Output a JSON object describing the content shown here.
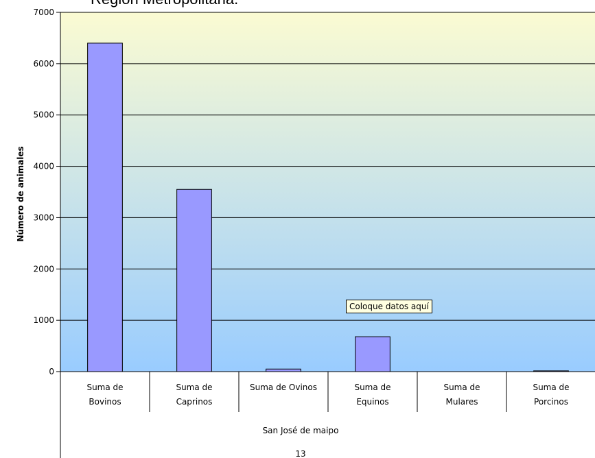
{
  "chart_data": {
    "type": "bar",
    "title": "Región Metropolitana.",
    "ylabel": "Número de animales",
    "ylim": [
      0,
      7000
    ],
    "yticks": [
      0,
      1000,
      2000,
      3000,
      4000,
      5000,
      6000,
      7000
    ],
    "categories": [
      [
        "Suma de",
        "Bovinos"
      ],
      [
        "Suma de",
        "Caprinos"
      ],
      [
        "Suma de Ovinos"
      ],
      [
        "Suma de",
        "Equinos"
      ],
      [
        "Suma de",
        "Mulares"
      ],
      [
        "Suma de",
        "Porcinos"
      ]
    ],
    "values": [
      6400,
      3550,
      50,
      680,
      0,
      15
    ],
    "group_label": "San José de maipo",
    "group_sublabel": "13",
    "bar_color": "#9999ff",
    "grid": true,
    "background_gradient": [
      "#fbfbd2",
      "#99ccff"
    ]
  },
  "overlay": {
    "tooltip_text": "Coloque datos aquí"
  }
}
